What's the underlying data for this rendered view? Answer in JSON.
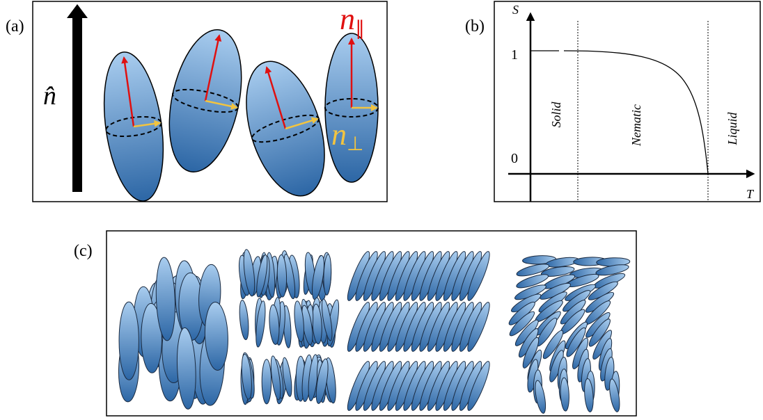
{
  "panels": [
    {
      "label": "(a)",
      "director": "n̂",
      "parallel": {
        "base": "n",
        "sub": "∥"
      },
      "perpendicular": {
        "base": "n",
        "sub": "⊥"
      }
    },
    {
      "label": "(b)",
      "y_axis": "S",
      "x_axis": "T",
      "y_ticks": [
        "1",
        "0"
      ],
      "phases": [
        "Solid",
        "Nematic",
        "Liquid"
      ]
    },
    {
      "label": "(c)"
    }
  ]
}
